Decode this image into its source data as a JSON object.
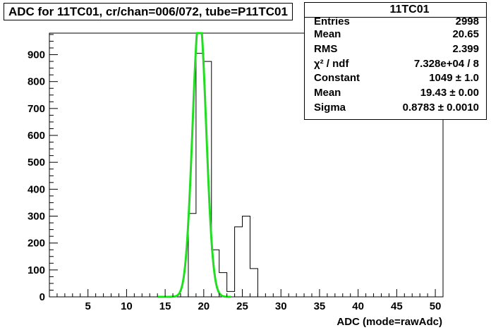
{
  "title": "ADC for 11TC01,  cr/chan=006/072,  tube=P11TC01",
  "stats": {
    "name": "11TC01",
    "rows": [
      {
        "label": "Entries",
        "value": "2998"
      },
      {
        "label": "Mean",
        "value": "20.65"
      },
      {
        "label": "RMS",
        "value": "2.399"
      },
      {
        "label": "χ² / ndf",
        "value": "7.328e+04 / 8"
      },
      {
        "label": "Constant",
        "value": "1049 ± 1.0"
      },
      {
        "label": "Mean",
        "value": "19.43 ± 0.00"
      },
      {
        "label": "Sigma",
        "value": "0.8783 ± 0.0010"
      }
    ]
  },
  "chart_data": {
    "type": "bar",
    "title": "ADC for 11TC01,  cr/chan=006/072,  tube=P11TC01",
    "xlabel": "ADC (mode=rawAdc)",
    "ylabel": "",
    "xlim": [
      0,
      51
    ],
    "ylim": [
      0,
      980
    ],
    "xticks": [
      5,
      10,
      15,
      20,
      25,
      30,
      35,
      40,
      45,
      50
    ],
    "yticks": [
      0,
      100,
      200,
      300,
      400,
      500,
      600,
      700,
      800,
      900
    ],
    "bin_width": 1,
    "bin_edges": [
      17,
      18,
      19,
      20,
      21,
      22,
      23,
      24,
      25,
      26,
      27
    ],
    "values": [
      0,
      310,
      905,
      875,
      175,
      90,
      20,
      260,
      300,
      105
    ],
    "fit": {
      "function": "gaus",
      "constant": 1049,
      "mean": 19.43,
      "sigma": 0.8783,
      "range": [
        14,
        23.5
      ],
      "color": "#22dd22"
    },
    "histogram_color": "#000000",
    "grid": false
  }
}
